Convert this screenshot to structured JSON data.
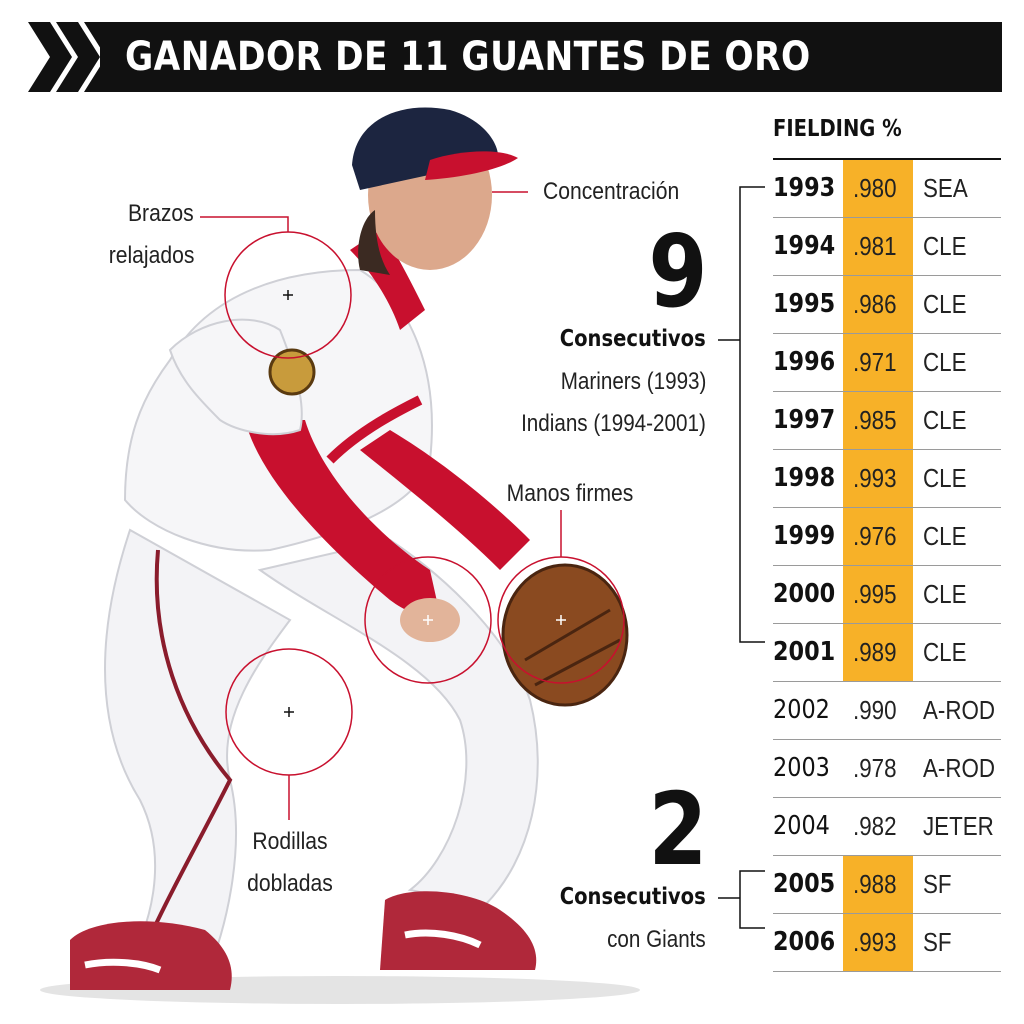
{
  "header": {
    "title": "GANADOR DE 11 GUANTES DE ORO"
  },
  "annotations": {
    "concentration": "Concentración",
    "arms_line1": "Brazos",
    "arms_line2": "relajados",
    "hands": "Manos firmes",
    "knees_line1": "Rodillas",
    "knees_line2": "dobladas"
  },
  "streak1": {
    "number": "9",
    "label": "Consecutivos",
    "line1": "Mariners (1993)",
    "line2": "Indians (1994-2001)"
  },
  "streak2": {
    "number": "2",
    "label": "Consecutivos",
    "line1": "con Giants"
  },
  "table": {
    "title": "FIELDING %",
    "rows": [
      {
        "year": "1993",
        "pct": ".980",
        "team": "SEA",
        "gold": true
      },
      {
        "year": "1994",
        "pct": ".981",
        "team": "CLE",
        "gold": true
      },
      {
        "year": "1995",
        "pct": ".986",
        "team": "CLE",
        "gold": true
      },
      {
        "year": "1996",
        "pct": ".971",
        "team": "CLE",
        "gold": true
      },
      {
        "year": "1997",
        "pct": ".985",
        "team": "CLE",
        "gold": true
      },
      {
        "year": "1998",
        "pct": ".993",
        "team": "CLE",
        "gold": true
      },
      {
        "year": "1999",
        "pct": ".976",
        "team": "CLE",
        "gold": true
      },
      {
        "year": "2000",
        "pct": ".995",
        "team": "CLE",
        "gold": true
      },
      {
        "year": "2001",
        "pct": ".989",
        "team": "CLE",
        "gold": true
      },
      {
        "year": "2002",
        "pct": ".990",
        "team": "A-ROD",
        "gold": false
      },
      {
        "year": "2003",
        "pct": ".978",
        "team": "A-ROD",
        "gold": false
      },
      {
        "year": "2004",
        "pct": ".982",
        "team": "JETER",
        "gold": false
      },
      {
        "year": "2005",
        "pct": ".988",
        "team": "SF",
        "gold": true
      },
      {
        "year": "2006",
        "pct": ".993",
        "team": "SF",
        "gold": true
      }
    ]
  },
  "colors": {
    "accent": "#f7b128",
    "callout": "#c8102e",
    "header_bg": "#111111"
  }
}
